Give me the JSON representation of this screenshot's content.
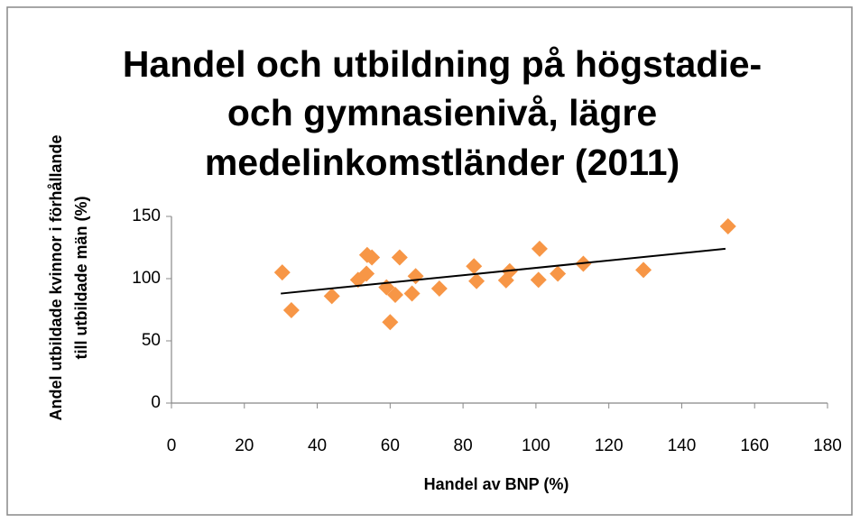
{
  "chart_data": {
    "type": "scatter",
    "title": [
      "Handel och utbildning på högstadie-",
      "och gymnasienivå, lägre",
      "medelinkomstländer (2011)"
    ],
    "xlabel": "Handel av BNP (%)",
    "ylabel": [
      "Andel utbildade kvinnor i förhållande",
      "till utbildade män (%)"
    ],
    "color": "#f79646",
    "x": [
      30.4,
      32.9,
      44,
      51.2,
      53.7,
      55,
      53.5,
      59,
      60,
      61.4,
      62.6,
      66,
      67,
      73.5,
      83,
      83.7,
      91.8,
      92.8,
      100.7,
      101,
      106,
      113,
      129.5,
      152.7
    ],
    "y": [
      105,
      74.6,
      86,
      99,
      119,
      117,
      104,
      93,
      65,
      87,
      117,
      88,
      102,
      92,
      110,
      98,
      98.6,
      106,
      99,
      124,
      104,
      112,
      107,
      142
    ],
    "trendline": {
      "color": "#000000",
      "x": [
        30,
        152
      ],
      "y": [
        88,
        124
      ]
    },
    "xlim": [
      0,
      180
    ],
    "xticks": [
      0,
      20,
      40,
      60,
      80,
      100,
      120,
      140,
      160,
      180
    ],
    "ylim": [
      0,
      150
    ],
    "yticks": [
      0,
      50,
      100,
      150
    ],
    "grid": false
  }
}
